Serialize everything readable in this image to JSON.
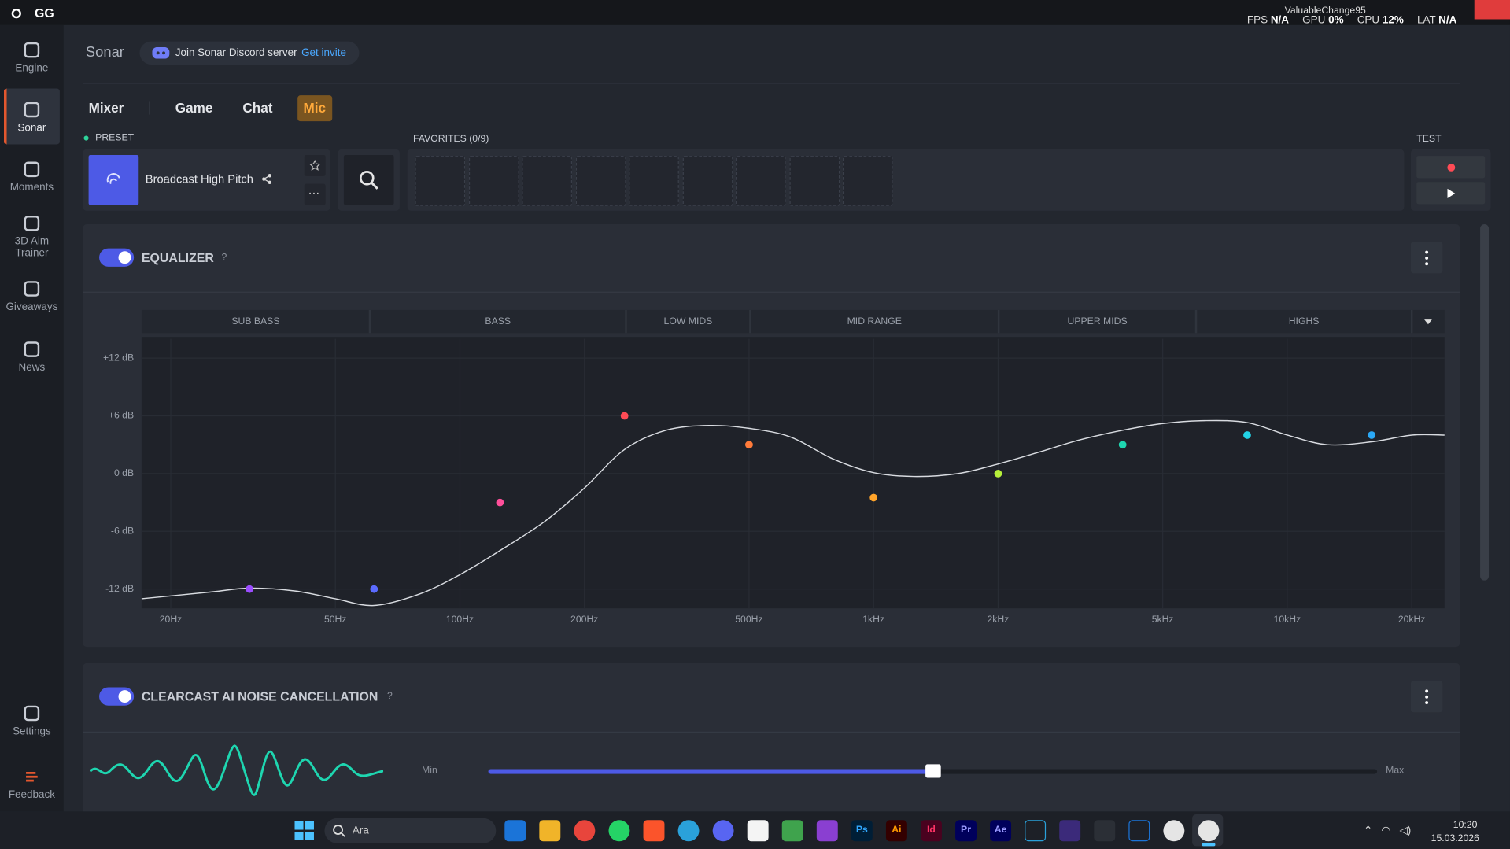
{
  "titlebar": {
    "app": "GG",
    "user": "ValuableChange95",
    "stats": [
      {
        "label": "FPS",
        "value": "N/A"
      },
      {
        "label": "GPU",
        "value": "0%"
      },
      {
        "label": "CPU",
        "value": "12%"
      },
      {
        "label": "LAT",
        "value": "N/A"
      }
    ]
  },
  "sidebar": {
    "items": [
      "Engine",
      "Sonar",
      "Moments",
      "3D Aim Trainer",
      "Giveaways",
      "News"
    ],
    "bottom": [
      "Settings",
      "Feedback"
    ]
  },
  "header": {
    "title": "Sonar",
    "discord": "Join Sonar Discord server",
    "invite": "Get invite"
  },
  "tabs": [
    "Mixer",
    "Game",
    "Chat",
    "Mic"
  ],
  "preset": {
    "label": "PRESET",
    "name": "Broadcast High Pitch"
  },
  "favorites": {
    "label": "FAVORITES (0/9)"
  },
  "test": {
    "label": "TEST"
  },
  "equalizer": {
    "title": "EQUALIZER",
    "help": "?"
  },
  "chart_data": {
    "type": "line",
    "xscale": "log",
    "grid": true,
    "bands": [
      "SUB BASS",
      "BASS",
      "LOW MIDS",
      "MID RANGE",
      "UPPER MIDS",
      "HIGHS"
    ],
    "xlim": [
      17,
      24000
    ],
    "ylim": [
      -14,
      14
    ],
    "xticks": [
      {
        "value": 20,
        "label": "20Hz"
      },
      {
        "value": 50,
        "label": "50Hz"
      },
      {
        "value": 100,
        "label": "100Hz"
      },
      {
        "value": 200,
        "label": "200Hz"
      },
      {
        "value": 500,
        "label": "500Hz"
      },
      {
        "value": 1000,
        "label": "1kHz"
      },
      {
        "value": 2000,
        "label": "2kHz"
      },
      {
        "value": 5000,
        "label": "5kHz"
      },
      {
        "value": 10000,
        "label": "10kHz"
      },
      {
        "value": 20000,
        "label": "20kHz"
      }
    ],
    "yticks": [
      {
        "value": 12,
        "label": "+12 dB"
      },
      {
        "value": 6,
        "label": "+6 dB"
      },
      {
        "value": 0,
        "label": "0 dB"
      },
      {
        "value": -6,
        "label": "-6 dB"
      },
      {
        "value": -12,
        "label": "-12 dB"
      }
    ],
    "points": {
      "x": [
        31,
        62,
        125,
        250,
        500,
        1000,
        2000,
        4000,
        8000,
        16000
      ],
      "values": [
        -12,
        -12,
        -3,
        6,
        3,
        -2.5,
        0,
        3,
        4,
        4
      ],
      "colors": [
        "#9b4dff",
        "#5b6bff",
        "#ff4f9a",
        "#ff4b55",
        "#ff7b3a",
        "#ffa42a",
        "#b6f03a",
        "#1ed6b0",
        "#22d3e6",
        "#2aa8f5"
      ]
    },
    "curve": {
      "color": "#d8dbe0",
      "x": [
        17,
        25,
        31,
        40,
        50,
        62,
        80,
        100,
        125,
        160,
        200,
        250,
        315,
        400,
        500,
        630,
        800,
        1000,
        1250,
        1600,
        2000,
        2500,
        3150,
        4000,
        5000,
        6300,
        8000,
        10000,
        12500,
        16000,
        20000,
        24000
      ],
      "values": [
        -13,
        -12.3,
        -11.9,
        -12.2,
        -13,
        -13.7,
        -12.5,
        -10.5,
        -8,
        -5,
        -1.5,
        2.5,
        4.5,
        5,
        4.7,
        3.8,
        1.5,
        0.1,
        -0.3,
        0,
        1,
        2.2,
        3.5,
        4.5,
        5.2,
        5.5,
        5.3,
        4,
        3,
        3.3,
        4,
        4
      ]
    }
  },
  "clearcast": {
    "title": "CLEARCAST AI NOISE CANCELLATION",
    "help": "?",
    "min": "Min",
    "max": "Max",
    "level": 50,
    "range": [
      0,
      100
    ]
  },
  "taskbar": {
    "search": "Ara",
    "apps": [
      "Ps",
      "Ai",
      "Id",
      "Pr",
      "Ae"
    ],
    "time": "10:20",
    "date": "15.03.2026"
  }
}
